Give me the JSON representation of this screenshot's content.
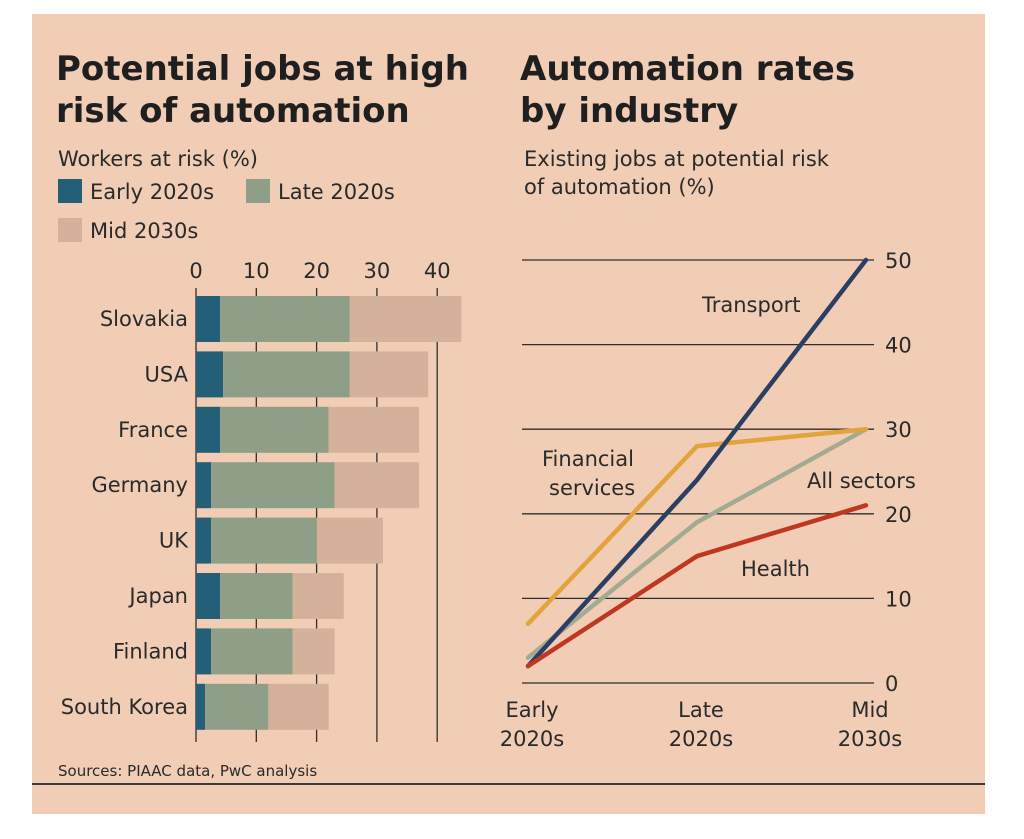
{
  "colors": {
    "background": "#f1cdb5",
    "early": "#245f78",
    "late": "#8f9e87",
    "mid": "#d4b19a",
    "transport": "#2a3f63",
    "financial": "#e0a43a",
    "all_sectors": "#a2ab92",
    "health": "#c0371f",
    "grid": "#2e2e2e"
  },
  "left_chart": {
    "title_line1": "Potential jobs at high",
    "title_line2": "risk of automation",
    "subtitle": "Workers at risk (%)",
    "legend": [
      "Early 2020s",
      "Late 2020s",
      "Mid 2030s"
    ],
    "ticks": [
      "0",
      "10",
      "20",
      "30",
      "40"
    ]
  },
  "right_chart": {
    "title_line1": "Automation rates",
    "title_line2": "by industry",
    "subtitle_line1": "Existing jobs at potential risk",
    "subtitle_line2": "of automation (%)",
    "ticks": [
      "50",
      "40",
      "30",
      "20",
      "10",
      "0"
    ],
    "x_labels": [
      [
        "Early",
        "2020s"
      ],
      [
        "Late",
        "2020s"
      ],
      [
        "Mid",
        "2030s"
      ]
    ],
    "labels": {
      "transport": "Transport",
      "financial_1": "Financial",
      "financial_2": "services",
      "all_sectors": "All sectors",
      "health": "Health"
    }
  },
  "source": "Sources: PIAAC data, PwC analysis",
  "chart_data": [
    {
      "type": "bar",
      "stacked": true,
      "orientation": "horizontal",
      "title": "Potential jobs at high risk of automation",
      "subtitle": "Workers at risk (%)",
      "categories": [
        "Slovakia",
        "USA",
        "France",
        "Germany",
        "UK",
        "Japan",
        "Finland",
        "South Korea"
      ],
      "series": [
        {
          "name": "Early 2020s",
          "values": [
            4,
            4.5,
            4,
            2.5,
            2.5,
            4,
            2.5,
            1.5
          ]
        },
        {
          "name": "Late 2020s",
          "values": [
            21.5,
            21,
            18,
            20.5,
            17.5,
            12,
            13.5,
            10.5
          ]
        },
        {
          "name": "Mid 2030s",
          "values": [
            18.5,
            13,
            15,
            14,
            11,
            8.5,
            7,
            10
          ]
        }
      ],
      "xlim": [
        0,
        45
      ],
      "grid": true,
      "legend": "top-left"
    },
    {
      "type": "line",
      "title": "Automation rates by industry",
      "subtitle": "Existing jobs at potential risk of automation (%)",
      "x": [
        "Early 2020s",
        "Late 2020s",
        "Mid 2030s"
      ],
      "series": [
        {
          "name": "Transport",
          "values": [
            2,
            24,
            50
          ]
        },
        {
          "name": "Financial services",
          "values": [
            7,
            28,
            30
          ]
        },
        {
          "name": "All sectors",
          "values": [
            3,
            19,
            30
          ]
        },
        {
          "name": "Health",
          "values": [
            2,
            15,
            21
          ]
        }
      ],
      "ylim": [
        0,
        50
      ],
      "grid": true
    }
  ]
}
